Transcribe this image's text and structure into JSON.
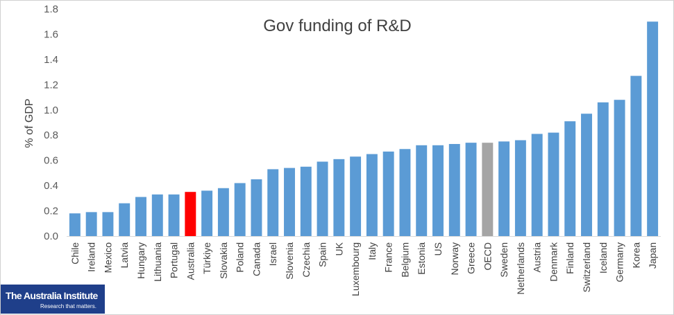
{
  "chart_data": {
    "type": "bar",
    "title": "Gov funding of R&D",
    "xlabel": "",
    "ylabel": "% of GDP",
    "ylim": [
      0,
      1.8
    ],
    "yticks": [
      "0.0",
      "0.2",
      "0.4",
      "0.6",
      "0.8",
      "1.0",
      "1.2",
      "1.4",
      "1.6",
      "1.8"
    ],
    "grid": false,
    "categories": [
      "Chile",
      "Ireland",
      "Mexico",
      "Latvia",
      "Hungary",
      "Lithuania",
      "Portugal",
      "Australia",
      "Türkiye",
      "Slovakia",
      "Poland",
      "Canada",
      "Israel",
      "Slovenia",
      "Czechia",
      "Spain",
      "UK",
      "Luxembourg",
      "Italy",
      "France",
      "Belgium",
      "Estonia",
      "US",
      "Norway",
      "Greece",
      "OECD",
      "Sweden",
      "Netherlands",
      "Austria",
      "Denmark",
      "Finland",
      "Switzerland",
      "Iceland",
      "Germany",
      "Korea",
      "Japan"
    ],
    "values": [
      0.18,
      0.19,
      0.19,
      0.26,
      0.31,
      0.33,
      0.33,
      0.35,
      0.36,
      0.38,
      0.42,
      0.45,
      0.53,
      0.54,
      0.55,
      0.59,
      0.61,
      0.63,
      0.65,
      0.67,
      0.69,
      0.72,
      0.72,
      0.73,
      0.74,
      0.74,
      0.75,
      0.76,
      0.81,
      0.82,
      0.91,
      0.97,
      1.06,
      1.08,
      1.27,
      1.7
    ],
    "colors": {
      "default": "#5b9bd5",
      "highlight": "#ff0000",
      "oecd": "#a5a5a5",
      "axis": "#d9d9d9"
    },
    "highlights": {
      "Australia": "highlight",
      "OECD": "oecd"
    }
  },
  "logo": {
    "brand": "The Australia Institute",
    "tagline": "Research that matters."
  }
}
